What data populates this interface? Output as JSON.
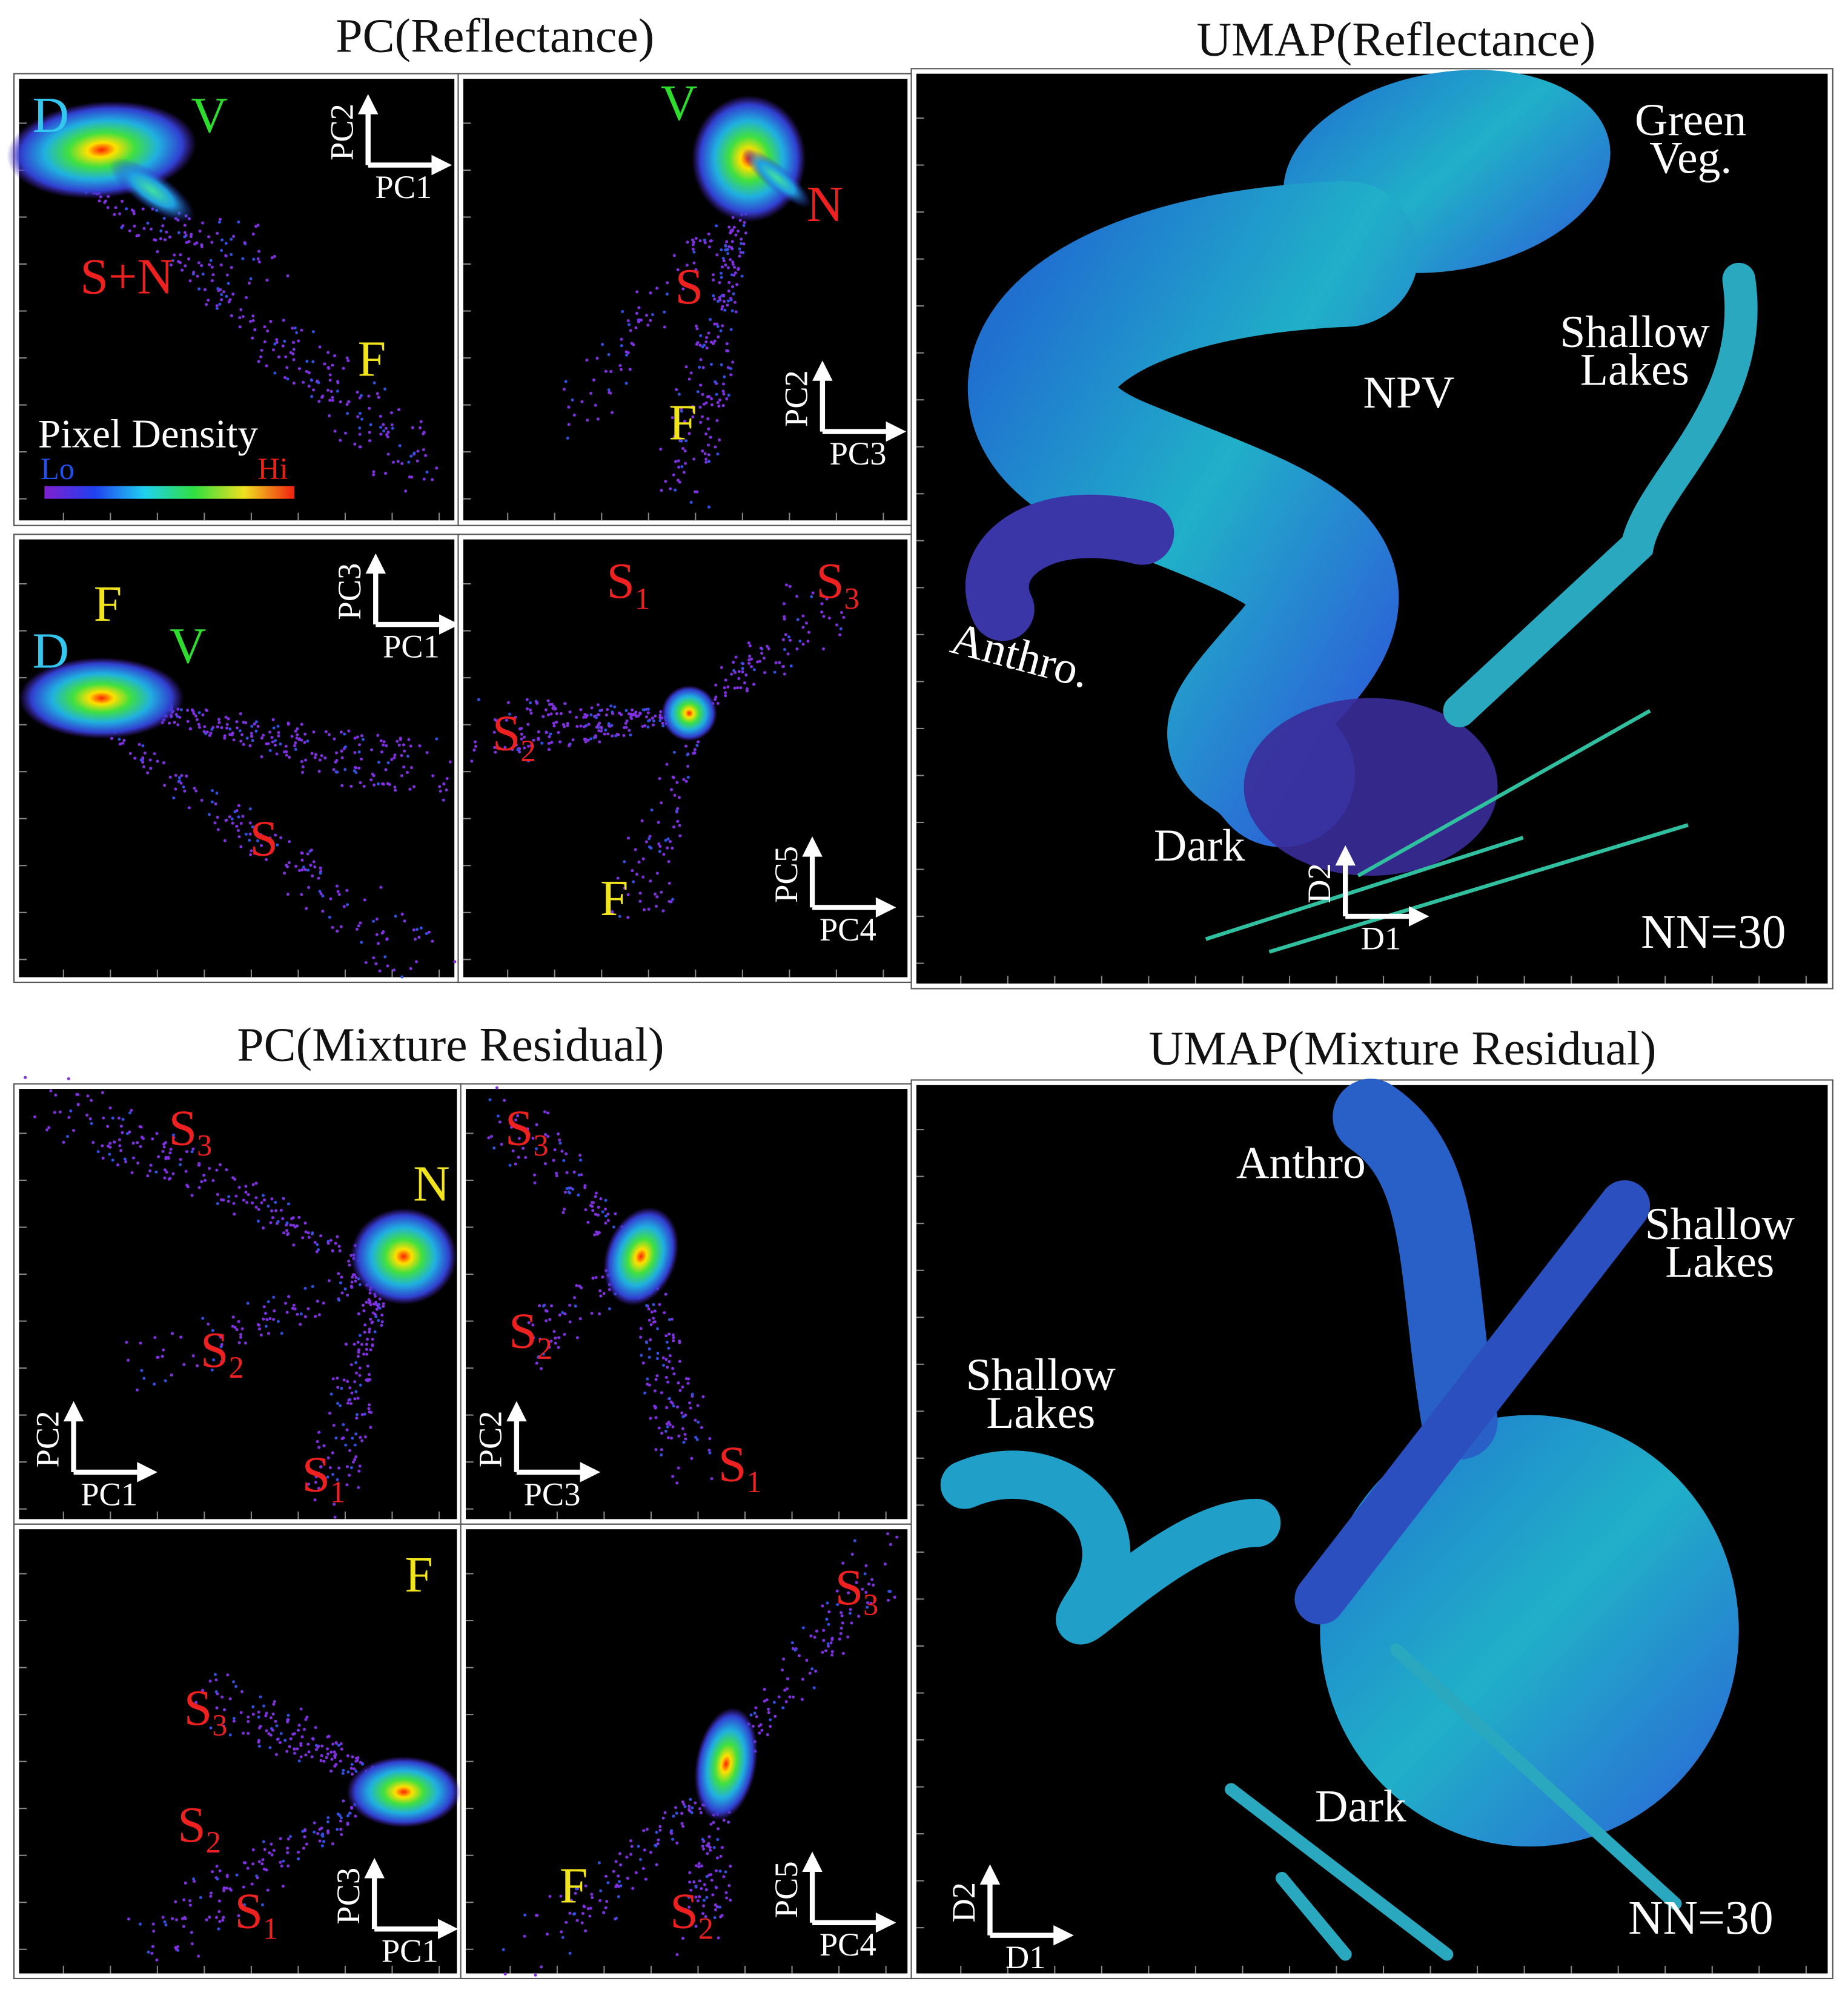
{
  "sections": [
    {
      "title": "PC(Reflectance)",
      "panels": [
        {
          "x_axis": "PC1",
          "y_axis": "PC2",
          "labels": [
            {
              "text": "D",
              "color": "#33c6ee"
            },
            {
              "text": "V",
              "color": "#2edc2e"
            },
            {
              "text": "S+N",
              "color": "#ee2020"
            },
            {
              "text": "F",
              "color": "#f2e41c"
            }
          ],
          "colorbar": {
            "title": "Pixel Density",
            "low": "Lo",
            "high": "Hi"
          }
        },
        {
          "x_axis": "PC3",
          "y_axis": "PC2",
          "labels": [
            {
              "text": "V",
              "color": "#2edc2e"
            },
            {
              "text": "N",
              "color": "#ee2020"
            },
            {
              "text": "S",
              "color": "#ee2020"
            },
            {
              "text": "F",
              "color": "#f2e41c"
            }
          ]
        },
        {
          "x_axis": "PC1",
          "y_axis": "PC3",
          "labels": [
            {
              "text": "D",
              "color": "#33c6ee"
            },
            {
              "text": "F",
              "color": "#f2e41c"
            },
            {
              "text": "V",
              "color": "#2edc2e"
            },
            {
              "text": "S",
              "color": "#ee2020"
            }
          ]
        },
        {
          "x_axis": "PC4",
          "y_axis": "PC5",
          "labels": [
            {
              "text": "S",
              "sub": "1",
              "color": "#ee2020"
            },
            {
              "text": "S",
              "sub": "3",
              "color": "#ee2020"
            },
            {
              "text": "S",
              "sub": "2",
              "color": "#ee2020"
            },
            {
              "text": "F",
              "color": "#f2e41c"
            }
          ]
        }
      ]
    },
    {
      "title": "UMAP(Reflectance)",
      "panels": [
        {
          "x_axis": "D1",
          "y_axis": "D2",
          "note": "NN=30",
          "labels": [
            {
              "lines": [
                "Green",
                "Veg."
              ],
              "color": "#ffffff"
            },
            {
              "lines": [
                "Shallow",
                "Lakes"
              ],
              "color": "#ffffff"
            },
            {
              "text": "NPV",
              "color": "#ffffff"
            },
            {
              "text": "Anthro.",
              "color": "#ffffff"
            },
            {
              "text": "Dark",
              "color": "#ffffff"
            }
          ]
        }
      ]
    },
    {
      "title": "PC(Mixture Residual)",
      "panels": [
        {
          "x_axis": "PC1",
          "y_axis": "PC2",
          "labels": [
            {
              "text": "S",
              "sub": "3",
              "color": "#ee2020"
            },
            {
              "text": "N",
              "color": "#f2e41c"
            },
            {
              "text": "S",
              "sub": "2",
              "color": "#ee2020"
            },
            {
              "text": "S",
              "sub": "1",
              "color": "#ee2020"
            }
          ]
        },
        {
          "x_axis": "PC3",
          "y_axis": "PC2",
          "labels": [
            {
              "text": "S",
              "sub": "3",
              "color": "#ee2020"
            },
            {
              "text": "S",
              "sub": "2",
              "color": "#ee2020"
            },
            {
              "text": "S",
              "sub": "1",
              "color": "#ee2020"
            }
          ]
        },
        {
          "x_axis": "PC1",
          "y_axis": "PC3",
          "labels": [
            {
              "text": "F",
              "color": "#f2e41c"
            },
            {
              "text": "S",
              "sub": "3",
              "color": "#ee2020"
            },
            {
              "text": "S",
              "sub": "2",
              "color": "#ee2020"
            },
            {
              "text": "S",
              "sub": "1",
              "color": "#ee2020"
            }
          ]
        },
        {
          "x_axis": "PC4",
          "y_axis": "PC5",
          "labels": [
            {
              "text": "S",
              "sub": "3",
              "color": "#ee2020"
            },
            {
              "text": "F",
              "color": "#f2e41c"
            },
            {
              "text": "S",
              "sub": "2",
              "color": "#ee2020"
            }
          ]
        }
      ]
    },
    {
      "title": "UMAP(Mixture Residual)",
      "panels": [
        {
          "x_axis": "D1",
          "y_axis": "D2",
          "note": "NN=30",
          "labels": [
            {
              "text": "Anthro",
              "color": "#ffffff"
            },
            {
              "lines": [
                "Shallow",
                "Lakes"
              ],
              "color": "#ffffff"
            },
            {
              "lines": [
                "Shallow",
                "Lakes"
              ],
              "color": "#ffffff"
            },
            {
              "text": "Dark",
              "color": "#ffffff"
            }
          ]
        }
      ]
    }
  ]
}
